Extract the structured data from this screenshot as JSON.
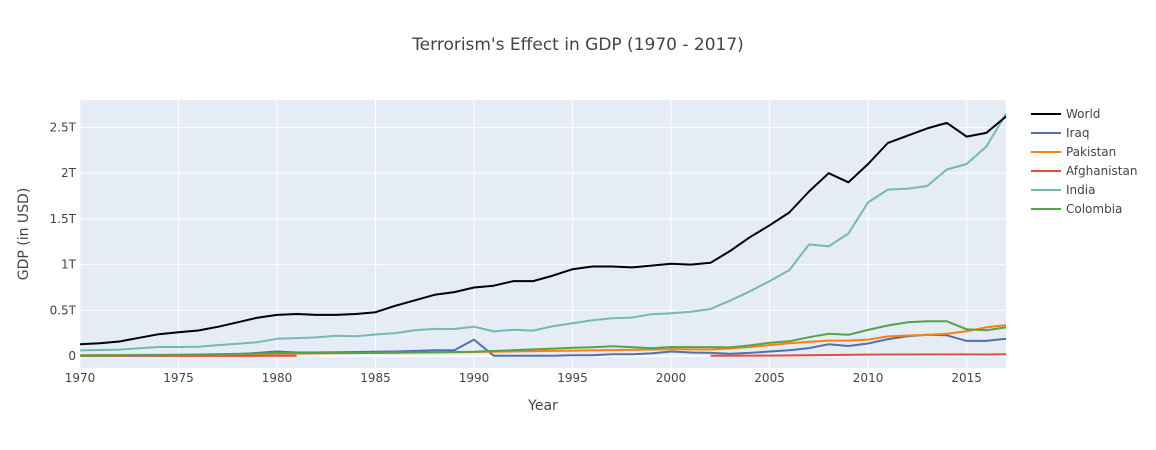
{
  "chart_data": {
    "type": "line",
    "title": "Terrorism's Effect in GDP (1970 - 2017)",
    "xlabel": "Year",
    "ylabel": "GDP (in USD)",
    "xlim": [
      1970,
      2017
    ],
    "ylim": [
      -0.13,
      2.8
    ],
    "y_unit": "trillions USD",
    "grid": true,
    "legend_position": "right",
    "background_color": "#e5ecf6",
    "x_ticks": [
      {
        "value": 1970,
        "label": "1970"
      },
      {
        "value": 1975,
        "label": "1975"
      },
      {
        "value": 1980,
        "label": "1980"
      },
      {
        "value": 1985,
        "label": "1985"
      },
      {
        "value": 1990,
        "label": "1990"
      },
      {
        "value": 1995,
        "label": "1995"
      },
      {
        "value": 2000,
        "label": "2000"
      },
      {
        "value": 2005,
        "label": "2005"
      },
      {
        "value": 2010,
        "label": "2010"
      },
      {
        "value": 2015,
        "label": "2015"
      }
    ],
    "y_ticks": [
      {
        "value": 0,
        "label": "0"
      },
      {
        "value": 0.5,
        "label": "0.5T"
      },
      {
        "value": 1,
        "label": "1T"
      },
      {
        "value": 1.5,
        "label": "1.5T"
      },
      {
        "value": 2,
        "label": "2T"
      },
      {
        "value": 2.5,
        "label": "2.5T"
      }
    ],
    "series": [
      {
        "name": "World",
        "color": "#000000",
        "x": [
          1970,
          1971,
          1972,
          1973,
          1974,
          1975,
          1976,
          1977,
          1978,
          1979,
          1980,
          1981,
          1982,
          1983,
          1984,
          1985,
          1986,
          1987,
          1988,
          1989,
          1990,
          1991,
          1992,
          1993,
          1994,
          1995,
          1996,
          1997,
          1998,
          1999,
          2000,
          2001,
          2002,
          2003,
          2004,
          2005,
          2006,
          2007,
          2008,
          2009,
          2010,
          2011,
          2012,
          2013,
          2014,
          2015,
          2016,
          2017
        ],
        "y": [
          0.13,
          0.14,
          0.16,
          0.2,
          0.24,
          0.26,
          0.28,
          0.32,
          0.37,
          0.42,
          0.45,
          0.46,
          0.45,
          0.45,
          0.46,
          0.48,
          0.55,
          0.61,
          0.67,
          0.7,
          0.75,
          0.77,
          0.82,
          0.82,
          0.88,
          0.95,
          0.98,
          0.98,
          0.97,
          0.99,
          1.01,
          1.0,
          1.02,
          1.15,
          1.3,
          1.43,
          1.57,
          1.8,
          2.0,
          1.9,
          2.1,
          2.33,
          2.41,
          2.49,
          2.55,
          2.4,
          2.44,
          2.62
        ]
      },
      {
        "name": "Iraq",
        "color": "#4c72b0",
        "x": [
          1970,
          1972,
          1974,
          1976,
          1978,
          1980,
          1981,
          1982,
          1984,
          1986,
          1988,
          1989,
          1990,
          1991,
          1992,
          1993,
          1994,
          1995,
          1996,
          1997,
          1998,
          1999,
          2000,
          2001,
          2002,
          2003,
          2004,
          2005,
          2006,
          2007,
          2008,
          2009,
          2010,
          2011,
          2012,
          2013,
          2014,
          2015,
          2016,
          2017
        ],
        "y": [
          0.005,
          0.007,
          0.01,
          0.015,
          0.02,
          0.05,
          0.04,
          0.04,
          0.045,
          0.05,
          0.065,
          0.065,
          0.18,
          0.005,
          0.005,
          0.005,
          0.005,
          0.01,
          0.01,
          0.02,
          0.02,
          0.03,
          0.05,
          0.04,
          0.035,
          0.025,
          0.035,
          0.05,
          0.065,
          0.088,
          0.13,
          0.11,
          0.138,
          0.185,
          0.218,
          0.234,
          0.228,
          0.166,
          0.166,
          0.19
        ]
      },
      {
        "name": "Pakistan",
        "color": "#ff7f0e",
        "x": [
          1970,
          1975,
          1980,
          1985,
          1990,
          1995,
          2000,
          2001,
          2002,
          2003,
          2004,
          2005,
          2006,
          2007,
          2008,
          2009,
          2010,
          2011,
          2012,
          2013,
          2014,
          2015,
          2016,
          2017
        ],
        "y": [
          0.01,
          0.015,
          0.025,
          0.035,
          0.045,
          0.06,
          0.074,
          0.073,
          0.072,
          0.083,
          0.1,
          0.12,
          0.14,
          0.155,
          0.17,
          0.17,
          0.18,
          0.215,
          0.225,
          0.232,
          0.245,
          0.271,
          0.314,
          0.339
        ]
      },
      {
        "name": "Afghanistan",
        "color": "#e64c3c",
        "x": [
          1970,
          1975,
          1980,
          1981
        ],
        "y": [
          0.002,
          0.002,
          0.003,
          0.003
        ],
        "x2": [
          2002,
          2005,
          2010,
          2015,
          2016,
          2017
        ],
        "y2": [
          0.004,
          0.006,
          0.016,
          0.019,
          0.018,
          0.02
        ]
      },
      {
        "name": "India",
        "color": "#76b7b2",
        "x": [
          1970,
          1971,
          1972,
          1973,
          1974,
          1975,
          1976,
          1977,
          1978,
          1979,
          1980,
          1981,
          1982,
          1983,
          1984,
          1985,
          1986,
          1987,
          1988,
          1989,
          1990,
          1991,
          1992,
          1993,
          1994,
          1995,
          1996,
          1997,
          1998,
          1999,
          2000,
          2001,
          2002,
          2003,
          2004,
          2005,
          2006,
          2007,
          2008,
          2009,
          2010,
          2011,
          2012,
          2013,
          2014,
          2015,
          2016,
          2017
        ],
        "y": [
          0.062,
          0.067,
          0.071,
          0.085,
          0.1,
          0.1,
          0.103,
          0.12,
          0.135,
          0.152,
          0.189,
          0.197,
          0.204,
          0.222,
          0.218,
          0.236,
          0.252,
          0.283,
          0.297,
          0.296,
          0.321,
          0.27,
          0.288,
          0.279,
          0.327,
          0.36,
          0.393,
          0.415,
          0.421,
          0.458,
          0.468,
          0.485,
          0.515,
          0.607,
          0.709,
          0.82,
          0.94,
          1.22,
          1.2,
          1.34,
          1.68,
          1.82,
          1.83,
          1.86,
          2.04,
          2.1,
          2.29,
          2.65
        ]
      },
      {
        "name": "Colombia",
        "color": "#55a24a",
        "x": [
          1970,
          1975,
          1980,
          1985,
          1990,
          1994,
          1995,
          1996,
          1997,
          1998,
          1999,
          2000,
          2001,
          2002,
          2003,
          2004,
          2005,
          2006,
          2007,
          2008,
          2009,
          2010,
          2011,
          2012,
          2013,
          2014,
          2015,
          2016,
          2017
        ],
        "y": [
          0.008,
          0.013,
          0.033,
          0.035,
          0.047,
          0.082,
          0.092,
          0.097,
          0.107,
          0.099,
          0.086,
          0.1,
          0.098,
          0.098,
          0.095,
          0.117,
          0.146,
          0.162,
          0.207,
          0.244,
          0.233,
          0.287,
          0.335,
          0.37,
          0.382,
          0.381,
          0.293,
          0.283,
          0.314
        ]
      }
    ]
  }
}
